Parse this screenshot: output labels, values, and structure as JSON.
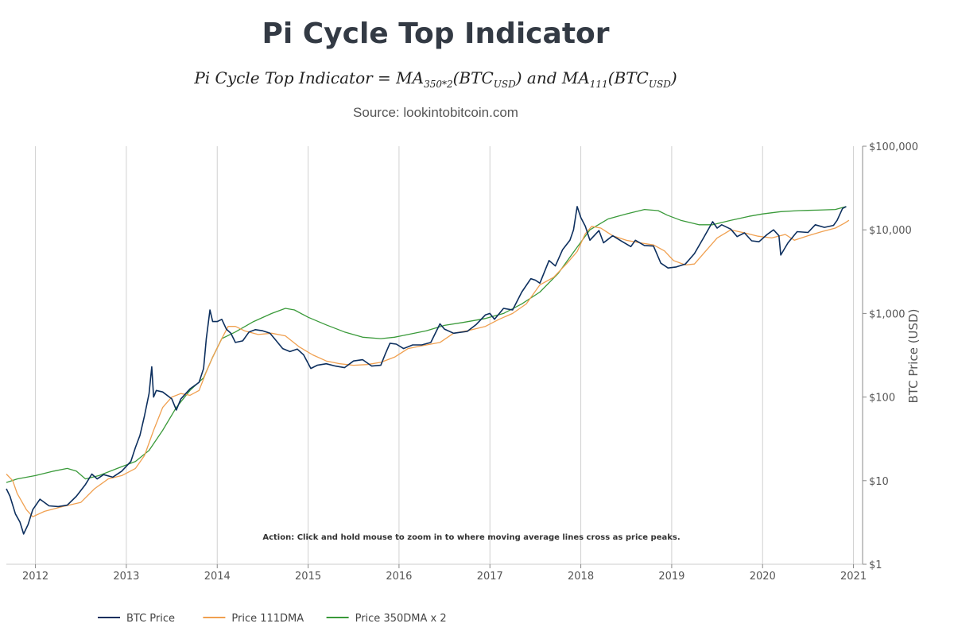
{
  "chart_data": {
    "type": "line",
    "title": "Pi Cycle Top Indicator",
    "formula": {
      "prefix": "Pi Cycle Top Indicator = MA",
      "sub1": "350*2",
      "mid": "(BTC",
      "sub2": "USD",
      "mid2": ") and MA",
      "sub3": "111",
      "mid3": "(BTC",
      "sub4": "USD",
      "suffix": ")"
    },
    "subtitle": "Source: lookintobitcoin.com",
    "ylabel": "BTC Price (USD)",
    "yscale": "log",
    "ylim": [
      1,
      100000
    ],
    "xlim": [
      2011.68,
      2021.1
    ],
    "y_ticks": [
      {
        "value": 1,
        "label": "$1"
      },
      {
        "value": 10,
        "label": "$10"
      },
      {
        "value": 100,
        "label": "$100"
      },
      {
        "value": 1000,
        "label": "$1,000"
      },
      {
        "value": 10000,
        "label": "$10,000"
      },
      {
        "value": 100000,
        "label": "$100,000"
      }
    ],
    "x_ticks": [
      {
        "value": 2012,
        "label": "2012"
      },
      {
        "value": 2013,
        "label": "2013"
      },
      {
        "value": 2014,
        "label": "2014"
      },
      {
        "value": 2015,
        "label": "2015"
      },
      {
        "value": 2016,
        "label": "2016"
      },
      {
        "value": 2017,
        "label": "2017"
      },
      {
        "value": 2018,
        "label": "2018"
      },
      {
        "value": 2019,
        "label": "2019"
      },
      {
        "value": 2020,
        "label": "2020"
      },
      {
        "value": 2021,
        "label": "2021"
      }
    ],
    "grid": "vertical",
    "legend_position": "bottom-left",
    "annotation": "Action: Click and hold mouse to zoom in to where moving average lines cross as price peaks.",
    "series": [
      {
        "name": "BTC Price",
        "color": "#0d2f5e",
        "points": [
          [
            2011.68,
            8
          ],
          [
            2011.72,
            6.5
          ],
          [
            2011.78,
            4
          ],
          [
            2011.83,
            3.2
          ],
          [
            2011.87,
            2.3
          ],
          [
            2011.92,
            3
          ],
          [
            2011.97,
            4.5
          ],
          [
            2012.05,
            6
          ],
          [
            2012.15,
            5
          ],
          [
            2012.25,
            4.9
          ],
          [
            2012.35,
            5.1
          ],
          [
            2012.45,
            6.5
          ],
          [
            2012.55,
            9
          ],
          [
            2012.62,
            12
          ],
          [
            2012.68,
            10.5
          ],
          [
            2012.75,
            11.8
          ],
          [
            2012.85,
            11
          ],
          [
            2012.95,
            13
          ],
          [
            2013.05,
            17
          ],
          [
            2013.1,
            25
          ],
          [
            2013.15,
            35
          ],
          [
            2013.2,
            60
          ],
          [
            2013.25,
            110
          ],
          [
            2013.28,
            230
          ],
          [
            2013.3,
            100
          ],
          [
            2013.33,
            120
          ],
          [
            2013.4,
            115
          ],
          [
            2013.5,
            95
          ],
          [
            2013.55,
            70
          ],
          [
            2013.6,
            95
          ],
          [
            2013.7,
            125
          ],
          [
            2013.8,
            150
          ],
          [
            2013.85,
            220
          ],
          [
            2013.88,
            500
          ],
          [
            2013.92,
            1100
          ],
          [
            2013.95,
            800
          ],
          [
            2014.0,
            800
          ],
          [
            2014.05,
            850
          ],
          [
            2014.1,
            650
          ],
          [
            2014.15,
            580
          ],
          [
            2014.2,
            450
          ],
          [
            2014.28,
            470
          ],
          [
            2014.35,
            600
          ],
          [
            2014.42,
            640
          ],
          [
            2014.5,
            620
          ],
          [
            2014.58,
            580
          ],
          [
            2014.65,
            470
          ],
          [
            2014.72,
            380
          ],
          [
            2014.8,
            350
          ],
          [
            2014.88,
            375
          ],
          [
            2014.95,
            320
          ],
          [
            2015.03,
            220
          ],
          [
            2015.1,
            240
          ],
          [
            2015.2,
            250
          ],
          [
            2015.3,
            235
          ],
          [
            2015.4,
            225
          ],
          [
            2015.5,
            270
          ],
          [
            2015.6,
            280
          ],
          [
            2015.7,
            235
          ],
          [
            2015.8,
            240
          ],
          [
            2015.85,
            330
          ],
          [
            2015.9,
            440
          ],
          [
            2015.97,
            430
          ],
          [
            2016.05,
            380
          ],
          [
            2016.15,
            420
          ],
          [
            2016.25,
            420
          ],
          [
            2016.35,
            450
          ],
          [
            2016.45,
            750
          ],
          [
            2016.5,
            650
          ],
          [
            2016.6,
            580
          ],
          [
            2016.75,
            610
          ],
          [
            2016.85,
            740
          ],
          [
            2016.95,
            960
          ],
          [
            2017.0,
            1000
          ],
          [
            2017.05,
            850
          ],
          [
            2017.15,
            1150
          ],
          [
            2017.25,
            1100
          ],
          [
            2017.35,
            1800
          ],
          [
            2017.45,
            2600
          ],
          [
            2017.5,
            2500
          ],
          [
            2017.55,
            2300
          ],
          [
            2017.65,
            4300
          ],
          [
            2017.72,
            3700
          ],
          [
            2017.8,
            5800
          ],
          [
            2017.88,
            7500
          ],
          [
            2017.92,
            10000
          ],
          [
            2017.96,
            19000
          ],
          [
            2018.0,
            14000
          ],
          [
            2018.05,
            11000
          ],
          [
            2018.1,
            7500
          ],
          [
            2018.2,
            9800
          ],
          [
            2018.25,
            7000
          ],
          [
            2018.35,
            8500
          ],
          [
            2018.45,
            7300
          ],
          [
            2018.55,
            6300
          ],
          [
            2018.6,
            7500
          ],
          [
            2018.7,
            6500
          ],
          [
            2018.8,
            6400
          ],
          [
            2018.88,
            4000
          ],
          [
            2018.96,
            3500
          ],
          [
            2019.05,
            3600
          ],
          [
            2019.15,
            3900
          ],
          [
            2019.25,
            5200
          ],
          [
            2019.35,
            8000
          ],
          [
            2019.45,
            12500
          ],
          [
            2019.5,
            10500
          ],
          [
            2019.55,
            11500
          ],
          [
            2019.65,
            10200
          ],
          [
            2019.72,
            8300
          ],
          [
            2019.8,
            9200
          ],
          [
            2019.88,
            7400
          ],
          [
            2019.96,
            7200
          ],
          [
            2020.05,
            8800
          ],
          [
            2020.12,
            10000
          ],
          [
            2020.18,
            8500
          ],
          [
            2020.2,
            5000
          ],
          [
            2020.28,
            7000
          ],
          [
            2020.38,
            9500
          ],
          [
            2020.5,
            9300
          ],
          [
            2020.58,
            11500
          ],
          [
            2020.68,
            10700
          ],
          [
            2020.78,
            11300
          ],
          [
            2020.82,
            13000
          ],
          [
            2020.88,
            18000
          ],
          [
            2020.92,
            19000
          ]
        ]
      },
      {
        "name": "Price 111DMA",
        "color": "#f0a050",
        "points": [
          [
            2011.68,
            12
          ],
          [
            2011.75,
            10
          ],
          [
            2011.8,
            7
          ],
          [
            2011.9,
            4.5
          ],
          [
            2011.97,
            3.7
          ],
          [
            2012.1,
            4.3
          ],
          [
            2012.3,
            4.9
          ],
          [
            2012.5,
            5.5
          ],
          [
            2012.65,
            8
          ],
          [
            2012.8,
            10.5
          ],
          [
            2012.95,
            11.5
          ],
          [
            2013.1,
            14
          ],
          [
            2013.2,
            20
          ],
          [
            2013.3,
            40
          ],
          [
            2013.4,
            75
          ],
          [
            2013.5,
            100
          ],
          [
            2013.6,
            110
          ],
          [
            2013.7,
            105
          ],
          [
            2013.8,
            120
          ],
          [
            2013.88,
            200
          ],
          [
            2013.95,
            300
          ],
          [
            2014.05,
            500
          ],
          [
            2014.12,
            700
          ],
          [
            2014.2,
            700
          ],
          [
            2014.3,
            620
          ],
          [
            2014.45,
            560
          ],
          [
            2014.6,
            580
          ],
          [
            2014.75,
            540
          ],
          [
            2014.9,
            400
          ],
          [
            2015.05,
            320
          ],
          [
            2015.2,
            270
          ],
          [
            2015.35,
            250
          ],
          [
            2015.5,
            240
          ],
          [
            2015.65,
            245
          ],
          [
            2015.8,
            260
          ],
          [
            2015.95,
            300
          ],
          [
            2016.1,
            380
          ],
          [
            2016.25,
            410
          ],
          [
            2016.45,
            450
          ],
          [
            2016.6,
            580
          ],
          [
            2016.75,
            620
          ],
          [
            2016.95,
            700
          ],
          [
            2017.1,
            850
          ],
          [
            2017.25,
            1000
          ],
          [
            2017.4,
            1300
          ],
          [
            2017.55,
            2200
          ],
          [
            2017.7,
            2700
          ],
          [
            2017.85,
            4000
          ],
          [
            2017.96,
            5500
          ],
          [
            2018.05,
            9000
          ],
          [
            2018.12,
            11000
          ],
          [
            2018.22,
            10500
          ],
          [
            2018.35,
            8500
          ],
          [
            2018.5,
            7500
          ],
          [
            2018.65,
            7000
          ],
          [
            2018.8,
            6600
          ],
          [
            2018.92,
            5600
          ],
          [
            2019.02,
            4300
          ],
          [
            2019.15,
            3800
          ],
          [
            2019.25,
            3900
          ],
          [
            2019.35,
            5200
          ],
          [
            2019.5,
            8000
          ],
          [
            2019.65,
            10000
          ],
          [
            2019.8,
            9200
          ],
          [
            2019.95,
            8400
          ],
          [
            2020.1,
            8000
          ],
          [
            2020.25,
            8800
          ],
          [
            2020.35,
            7500
          ],
          [
            2020.5,
            8500
          ],
          [
            2020.65,
            9500
          ],
          [
            2020.8,
            10500
          ],
          [
            2020.9,
            12000
          ],
          [
            2020.95,
            13000
          ]
        ]
      },
      {
        "name": "Price 350DMA x 2",
        "color": "#3a9a3a",
        "points": [
          [
            2011.68,
            9.5
          ],
          [
            2011.8,
            10.5
          ],
          [
            2012.0,
            11.5
          ],
          [
            2012.2,
            13
          ],
          [
            2012.35,
            14
          ],
          [
            2012.45,
            13
          ],
          [
            2012.55,
            10.5
          ],
          [
            2012.7,
            11.5
          ],
          [
            2012.9,
            14
          ],
          [
            2013.1,
            17
          ],
          [
            2013.25,
            23
          ],
          [
            2013.4,
            40
          ],
          [
            2013.55,
            75
          ],
          [
            2013.7,
            120
          ],
          [
            2013.85,
            170
          ],
          [
            2013.95,
            300
          ],
          [
            2014.05,
            500
          ],
          [
            2014.2,
            600
          ],
          [
            2014.4,
            800
          ],
          [
            2014.6,
            1000
          ],
          [
            2014.75,
            1150
          ],
          [
            2014.85,
            1100
          ],
          [
            2015.0,
            900
          ],
          [
            2015.2,
            730
          ],
          [
            2015.4,
            600
          ],
          [
            2015.6,
            520
          ],
          [
            2015.8,
            500
          ],
          [
            2015.95,
            520
          ],
          [
            2016.1,
            560
          ],
          [
            2016.3,
            620
          ],
          [
            2016.5,
            720
          ],
          [
            2016.7,
            780
          ],
          [
            2016.95,
            870
          ],
          [
            2017.15,
            1000
          ],
          [
            2017.35,
            1300
          ],
          [
            2017.55,
            1800
          ],
          [
            2017.75,
            3000
          ],
          [
            2017.95,
            6000
          ],
          [
            2018.1,
            10000
          ],
          [
            2018.3,
            13500
          ],
          [
            2018.5,
            15500
          ],
          [
            2018.7,
            17500
          ],
          [
            2018.85,
            17000
          ],
          [
            2018.95,
            15000
          ],
          [
            2019.1,
            13000
          ],
          [
            2019.3,
            11500
          ],
          [
            2019.45,
            11500
          ],
          [
            2019.65,
            13000
          ],
          [
            2019.85,
            14500
          ],
          [
            2020.0,
            15500
          ],
          [
            2020.2,
            16500
          ],
          [
            2020.4,
            17000
          ],
          [
            2020.6,
            17200
          ],
          [
            2020.8,
            17500
          ],
          [
            2020.92,
            19000
          ]
        ]
      }
    ]
  }
}
